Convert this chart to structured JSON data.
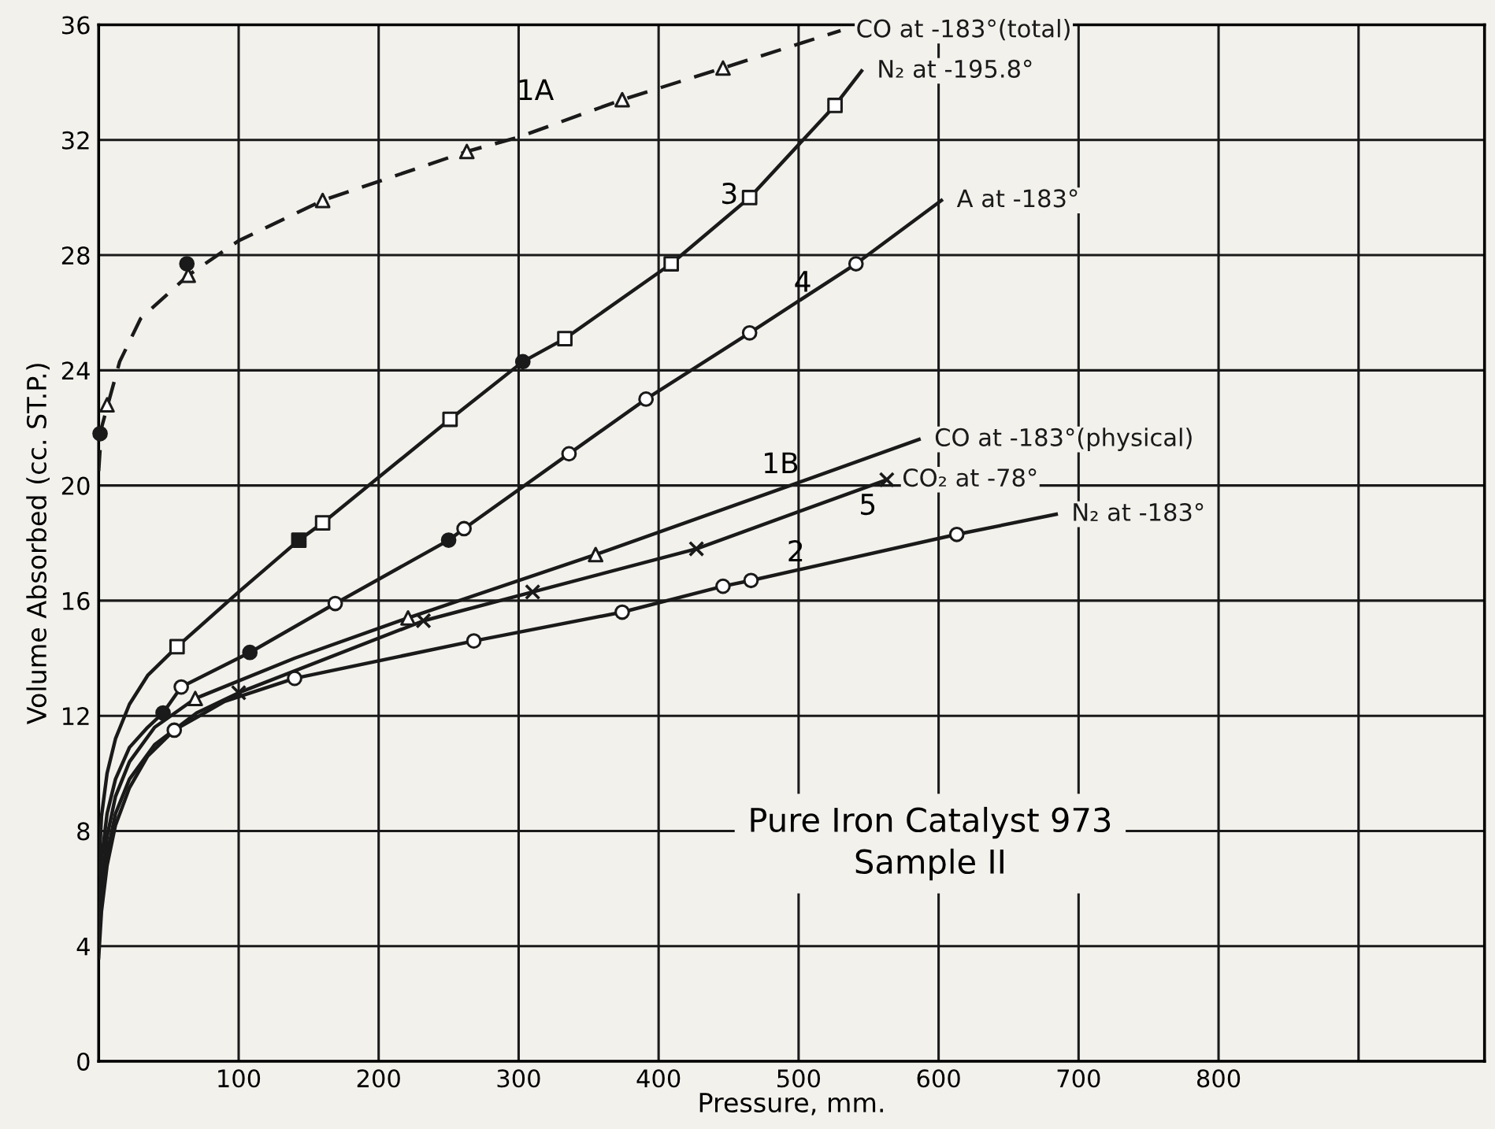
{
  "chart_data": {
    "type": "line",
    "xlabel": "Pressure, mm.",
    "ylabel": "Volume Absorbed (cc. ST.P.)",
    "xlim": [
      0,
      990
    ],
    "ylim": [
      0,
      36
    ],
    "xticks": [
      {
        "value": 0,
        "label": null
      },
      100,
      200,
      300,
      400,
      500,
      600,
      700,
      800,
      {
        "value": 900,
        "label": null
      }
    ],
    "yticks": [
      0,
      4,
      8,
      12,
      16,
      20,
      24,
      28,
      32,
      36
    ],
    "grid": true,
    "series": [
      {
        "name": "CO at -183°(total)",
        "line_style": "dashed",
        "marker": "none",
        "color": "#1a1a1a",
        "x": [
          0,
          2,
          15,
          30,
          64,
          100,
          160,
          263,
          300,
          374,
          446,
          530
        ],
        "values": [
          20.5,
          22.0,
          24.3,
          25.8,
          27.3,
          28.5,
          29.9,
          31.6,
          32.1,
          33.4,
          34.5,
          35.8
        ]
      },
      {
        "type": "scatter",
        "marker": "triangle",
        "color": "#ffffff",
        "x": [
          6,
          64,
          160,
          263,
          374,
          446
        ],
        "values": [
          22.8,
          27.3,
          29.9,
          31.6,
          33.4,
          34.5
        ]
      },
      {
        "type": "scatter",
        "marker": "circle",
        "color": "#1a1a1a",
        "x": [
          1,
          63
        ],
        "values": [
          21.8,
          27.7
        ]
      },
      {
        "name": "N₂ at -195.8°",
        "line_style": "solid",
        "marker": "none",
        "color": "#1a1a1a",
        "x": [
          0,
          2,
          6,
          12,
          22,
          35,
          56,
          100,
          143,
          160,
          251,
          303,
          333,
          409,
          465,
          526,
          545
        ],
        "values": [
          6.5,
          8.5,
          10.0,
          11.2,
          12.4,
          13.4,
          14.4,
          16.3,
          18.1,
          18.7,
          22.3,
          24.3,
          25.1,
          27.7,
          30.0,
          33.2,
          34.4
        ]
      },
      {
        "type": "scatter",
        "marker": "square",
        "color": "#ffffff",
        "x": [
          56,
          160,
          251,
          333,
          409,
          465,
          526
        ],
        "values": [
          14.4,
          18.7,
          22.3,
          25.1,
          27.7,
          30.0,
          33.2
        ]
      },
      {
        "type": "scatter",
        "marker": "square",
        "color": "#1a1a1a",
        "x": [
          143
        ],
        "values": [
          18.1
        ]
      },
      {
        "name": "A at -183°",
        "line_style": "solid",
        "marker": "none",
        "color": "#1a1a1a",
        "x": [
          0,
          2,
          6,
          12,
          22,
          35,
          46,
          59,
          108,
          169,
          250,
          261,
          336,
          391,
          465,
          541,
          602
        ],
        "values": [
          5.0,
          7.0,
          8.6,
          9.8,
          10.9,
          11.6,
          12.1,
          13.0,
          14.2,
          15.9,
          18.1,
          18.5,
          21.1,
          23.0,
          25.3,
          27.7,
          29.9
        ]
      },
      {
        "type": "scatter",
        "marker": "circle",
        "color": "#ffffff",
        "x": [
          59,
          169,
          261,
          336,
          391,
          465,
          541
        ],
        "values": [
          13.0,
          15.9,
          18.5,
          21.1,
          23.0,
          25.3,
          27.7
        ]
      },
      {
        "type": "scatter",
        "marker": "circle",
        "color": "#1a1a1a",
        "x": [
          46,
          108,
          250,
          303
        ],
        "values": [
          12.1,
          14.2,
          18.1,
          24.3
        ]
      },
      {
        "name": "CO at -183°(physical)",
        "line_style": "solid",
        "marker": "none",
        "color": "#1a1a1a",
        "x": [
          0,
          2,
          6,
          12,
          22,
          40,
          69,
          140,
          221,
          355,
          500,
          586
        ],
        "values": [
          4.2,
          6.0,
          7.8,
          9.2,
          10.4,
          11.6,
          12.6,
          14.0,
          15.4,
          17.6,
          20.1,
          21.6
        ]
      },
      {
        "type": "scatter",
        "marker": "triangle",
        "color": "#ffffff",
        "x": [
          69,
          221,
          355
        ],
        "values": [
          12.6,
          15.4,
          17.6
        ]
      },
      {
        "name": "CO₂ at -78°",
        "line_style": "solid",
        "marker": "none",
        "color": "#1a1a1a",
        "x": [
          0,
          2,
          6,
          12,
          22,
          40,
          70,
          100,
          232,
          310,
          427,
          563
        ],
        "values": [
          4.0,
          5.6,
          7.2,
          8.6,
          9.8,
          11.0,
          12.1,
          12.8,
          15.3,
          16.3,
          17.8,
          20.2
        ]
      },
      {
        "type": "scatter",
        "marker": "cross",
        "color": "#1a1a1a",
        "x": [
          100,
          232,
          310,
          427,
          563
        ],
        "values": [
          12.8,
          15.3,
          16.3,
          17.8,
          20.2
        ]
      },
      {
        "name": "N₂ at -183°",
        "line_style": "solid",
        "marker": "none",
        "color": "#1a1a1a",
        "x": [
          0,
          2,
          6,
          12,
          22,
          35,
          54,
          90,
          140,
          268,
          374,
          446,
          466,
          613,
          684
        ],
        "values": [
          3.6,
          5.2,
          6.8,
          8.2,
          9.5,
          10.6,
          11.5,
          12.5,
          13.3,
          14.6,
          15.6,
          16.5,
          16.7,
          18.3,
          19.0
        ]
      },
      {
        "type": "scatter",
        "marker": "circle",
        "color": "#ffffff",
        "x": [
          54,
          140,
          268,
          374,
          446,
          466,
          613
        ],
        "values": [
          11.5,
          13.3,
          14.6,
          15.6,
          16.5,
          16.7,
          18.3
        ]
      }
    ],
    "annotations": [
      "1A",
      "3",
      "4",
      "1B",
      "5",
      "2",
      "Pure Iron Catalyst 973\nSample II"
    ]
  }
}
